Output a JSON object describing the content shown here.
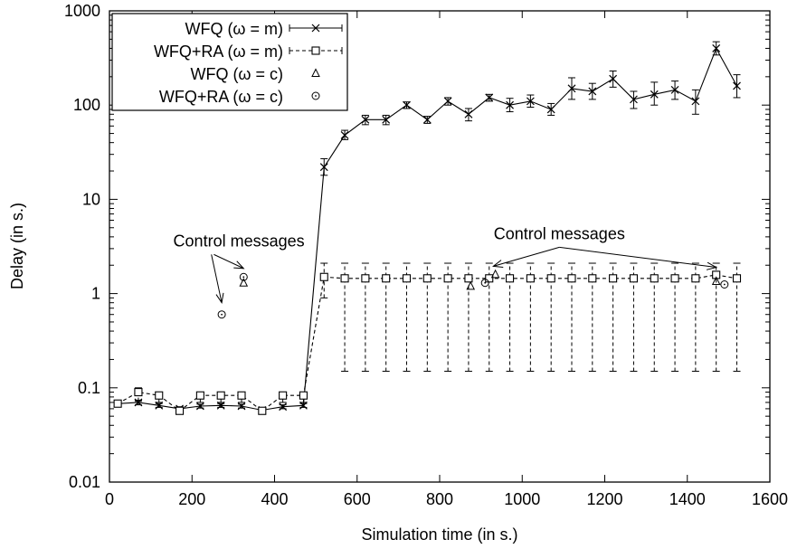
{
  "chart_data": {
    "type": "line",
    "title": "",
    "xlabel": "Simulation time (in s.)",
    "ylabel": "Delay (in s.)",
    "xlim": [
      0,
      1600
    ],
    "ylim": [
      0.01,
      1000
    ],
    "yscale": "log",
    "x_ticks": [
      "0",
      "200",
      "400",
      "600",
      "800",
      "1000",
      "1200",
      "1400",
      "1600"
    ],
    "y_ticks": [
      "0.01",
      "0.1",
      "1",
      "10",
      "100",
      "1000"
    ],
    "grid": false,
    "legend_position": "top-left",
    "series": [
      {
        "name": "WFQ (ω = m)",
        "style": "solid line with x markers and error bars",
        "x": [
          20,
          70,
          120,
          170,
          220,
          270,
          320,
          370,
          420,
          470,
          520,
          570,
          620,
          670,
          720,
          770,
          820,
          870,
          920,
          970,
          1020,
          1070,
          1120,
          1170,
          1220,
          1270,
          1320,
          1370,
          1420,
          1470,
          1520
        ],
        "y": [
          0.068,
          0.07,
          0.065,
          0.06,
          0.064,
          0.065,
          0.064,
          0.058,
          0.063,
          0.065,
          22,
          48,
          70,
          70,
          100,
          70,
          110,
          80,
          120,
          100,
          110,
          90,
          150,
          140,
          190,
          115,
          130,
          145,
          110,
          400,
          160
        ],
        "err_low": [
          0.065,
          0.066,
          0.062,
          0.057,
          0.061,
          0.062,
          0.061,
          0.055,
          0.06,
          0.062,
          18,
          43,
          62,
          62,
          92,
          64,
          100,
          68,
          110,
          85,
          95,
          78,
          115,
          115,
          155,
          92,
          100,
          115,
          80,
          340,
          120
        ],
        "err_high": [
          0.071,
          0.074,
          0.068,
          0.063,
          0.067,
          0.068,
          0.067,
          0.061,
          0.066,
          0.068,
          27,
          54,
          78,
          78,
          108,
          76,
          120,
          92,
          130,
          118,
          128,
          104,
          195,
          170,
          230,
          140,
          175,
          180,
          145,
          470,
          210
        ]
      },
      {
        "name": "WFQ+RA (ω = m)",
        "style": "dashed line with square markers and error bars",
        "x": [
          20,
          70,
          120,
          170,
          220,
          270,
          320,
          370,
          420,
          470,
          520,
          570,
          620,
          670,
          720,
          770,
          820,
          870,
          920,
          970,
          1020,
          1070,
          1120,
          1170,
          1220,
          1270,
          1320,
          1370,
          1420,
          1470,
          1520
        ],
        "y": [
          0.068,
          0.09,
          0.083,
          0.057,
          0.083,
          0.083,
          0.083,
          0.057,
          0.083,
          0.083,
          1.5,
          1.45,
          1.45,
          1.45,
          1.45,
          1.45,
          1.45,
          1.45,
          1.45,
          1.45,
          1.45,
          1.45,
          1.45,
          1.45,
          1.45,
          1.45,
          1.45,
          1.45,
          1.45,
          1.58,
          1.45
        ],
        "err_low": [
          0.065,
          0.072,
          0.07,
          0.054,
          0.07,
          0.07,
          0.07,
          0.054,
          0.07,
          0.07,
          0.9,
          0.15,
          0.15,
          0.15,
          0.15,
          0.15,
          0.15,
          0.15,
          0.15,
          0.15,
          0.15,
          0.15,
          0.15,
          0.15,
          0.15,
          0.15,
          0.15,
          0.15,
          0.15,
          0.15,
          0.15
        ],
        "err_high": [
          0.071,
          0.1,
          0.09,
          0.06,
          0.09,
          0.09,
          0.09,
          0.06,
          0.09,
          0.09,
          2.1,
          2.1,
          2.1,
          2.1,
          2.1,
          2.1,
          2.1,
          2.1,
          2.1,
          2.1,
          2.1,
          2.1,
          2.1,
          2.1,
          2.1,
          2.1,
          2.1,
          2.1,
          2.1,
          2.1,
          2.1
        ]
      },
      {
        "name": "WFQ (ω = c)",
        "style": "triangle markers only",
        "x": [
          325,
          875,
          935,
          1470
        ],
        "y": [
          1.3,
          1.2,
          1.6,
          1.35
        ]
      },
      {
        "name": "WFQ+RA (ω = c)",
        "style": "circle markers only",
        "x": [
          272,
          325,
          910,
          1490
        ],
        "y": [
          0.6,
          1.5,
          1.3,
          1.25
        ]
      }
    ],
    "annotations": [
      {
        "text": "Control messages",
        "anchor_x": 215,
        "anchor_y": 2.6,
        "arrows_to": [
          {
            "x": 272,
            "y": 0.8
          },
          {
            "x": 325,
            "y": 1.85
          }
        ]
      },
      {
        "text": "Control messages",
        "anchor_x": 1090,
        "anchor_y": 3.1,
        "arrows_to": [
          {
            "x": 930,
            "y": 1.95
          },
          {
            "x": 1470,
            "y": 1.9
          }
        ]
      }
    ]
  }
}
